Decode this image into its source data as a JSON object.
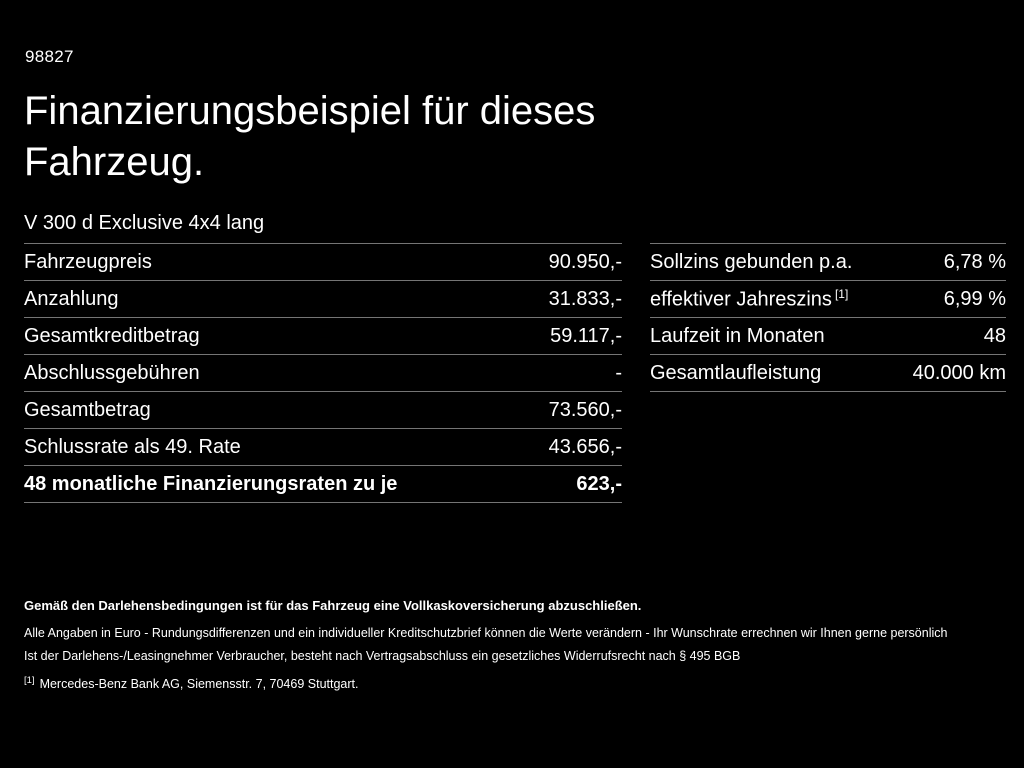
{
  "page": {
    "id": "98827",
    "title": "Finanzierungsbeispiel für dieses Fahrzeug.",
    "subtitle": "V 300 d Exclusive 4x4 lang"
  },
  "left_table": {
    "rows": [
      {
        "label": "Fahrzeugpreis",
        "value": "90.950,-"
      },
      {
        "label": "Anzahlung",
        "value": "31.833,-"
      },
      {
        "label": "Gesamtkreditbetrag",
        "value": "59.117,-"
      },
      {
        "label": "Abschlussgebühren",
        "value": "-"
      },
      {
        "label": "Gesamtbetrag",
        "value": "73.560,-"
      },
      {
        "label": "Schlussrate als 49. Rate",
        "value": "43.656,-"
      },
      {
        "label": "48 monatliche Finanzierungsraten zu je",
        "value": "623,-"
      }
    ]
  },
  "right_table": {
    "rows": [
      {
        "label": "Sollzins gebunden p.a.",
        "sup": "",
        "value": "6,78 %"
      },
      {
        "label": "effektiver Jahreszins",
        "sup": "[1]",
        "value": "6,99 %"
      },
      {
        "label": "Laufzeit in Monaten",
        "sup": "",
        "value": "48"
      },
      {
        "label": "Gesamtlaufleistung",
        "sup": "",
        "value": "40.000 km"
      }
    ]
  },
  "footer": {
    "insurance_note": "Gemäß den Darlehensbedingungen ist für das Fahrzeug eine Vollkaskoversicherung abzuschließen.",
    "disclaimer": "Alle Angaben in Euro - Rundungsdifferenzen und ein individueller Kreditschutzbrief können die Werte verändern - Ihr Wunschrate errechnen wir Ihnen gerne persönlich",
    "withdrawal_note": "Ist der Darlehens-/Leasingnehmer Verbraucher, besteht nach Vertragsabschluss ein gesetzliches Widerrufsrecht nach § 495 BGB",
    "footnote_marker": "[1]",
    "footnote": "Mercedes-Benz Bank AG, Siemensstr. 7, 70469 Stuttgart."
  }
}
